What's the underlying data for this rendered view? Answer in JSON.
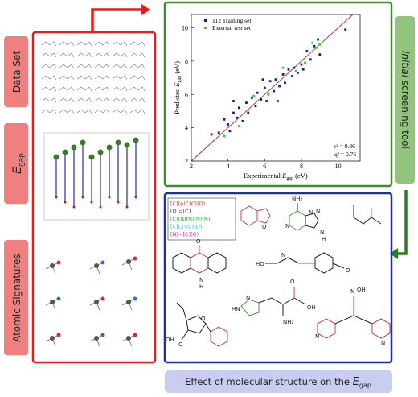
{
  "tabs": [
    {
      "text": "Data Set"
    },
    {
      "main": "E",
      "sub": "gap"
    },
    {
      "text": "Atomic Signatures"
    }
  ],
  "side_tab": {
    "italic": "initial",
    "rest": " screening tool"
  },
  "scatter": {
    "series": [
      {
        "name": "112 Training set",
        "color": "#1a1aa6",
        "x": [
          3.1,
          3.5,
          3.8,
          4.0,
          4.1,
          4.3,
          4.5,
          4.6,
          4.8,
          5.0,
          5.1,
          5.3,
          5.5,
          5.6,
          5.8,
          6.0,
          6.1,
          6.3,
          6.5,
          6.6,
          6.8,
          7.0,
          7.1,
          7.3,
          7.5,
          7.6,
          7.8,
          8.0,
          8.1,
          8.3,
          8.5,
          8.7,
          8.9,
          9.0,
          10.4,
          5.9,
          6.7,
          4.3
        ],
        "y": [
          3.6,
          3.7,
          4.5,
          4.2,
          3.8,
          4.9,
          4.6,
          5.2,
          4.4,
          5.5,
          4.9,
          5.8,
          5.3,
          6.1,
          5.7,
          6.4,
          5.6,
          6.8,
          6.2,
          6.9,
          6.5,
          7.2,
          6.7,
          7.5,
          7.1,
          7.6,
          7.3,
          7.8,
          7.5,
          8.6,
          8.1,
          8.9,
          9.3,
          8.4,
          9.9,
          6.9,
          5.6,
          5.6
        ]
      },
      {
        "name": "External test set",
        "color": "#33cc33",
        "x": [
          3.8,
          4.6,
          5.4,
          6.2,
          7.0,
          7.7,
          8.2,
          8.6,
          8.8,
          9.0
        ],
        "y": [
          3.5,
          4.1,
          5.9,
          6.0,
          7.6,
          7.4,
          7.9,
          9.1,
          8.8,
          9.0
        ]
      }
    ],
    "xlim": [
      2,
      11.2
    ],
    "ylim": [
      2,
      10.8
    ],
    "xticks": [
      2,
      4,
      6,
      8,
      10
    ],
    "yticks": [
      2,
      4,
      6,
      8,
      10
    ],
    "x_label": {
      "prefix": "Experimental ",
      "main": "E",
      "sub": "gap",
      "suffix": " (eV)"
    },
    "y_label": {
      "prefix": "Predicted ",
      "main": "E",
      "sub": "gap",
      "suffix": " (eV)"
    },
    "stats": [
      "r² = 0.86",
      "q² = 0.76"
    ]
  },
  "fragment_legend": [
    "[C](p)C(C)(O)",
    "[O]=[C]",
    "[C](N)[N](N)[N]",
    "[C]C(=C)(O)",
    "[N]=[C](O)"
  ],
  "molecule_labels": [
    "O",
    "NH₂",
    "N",
    "N",
    "N",
    "N",
    "H",
    "O",
    "N",
    "H",
    "HO",
    "N",
    "O",
    "HN",
    "N",
    "NH₂",
    "OH",
    "O",
    "O",
    "O",
    "OH",
    "N",
    "OH",
    "N",
    "N"
  ],
  "caption": {
    "text": "Effect of molecular structure on the ",
    "main": "E",
    "sub": "gap"
  }
}
